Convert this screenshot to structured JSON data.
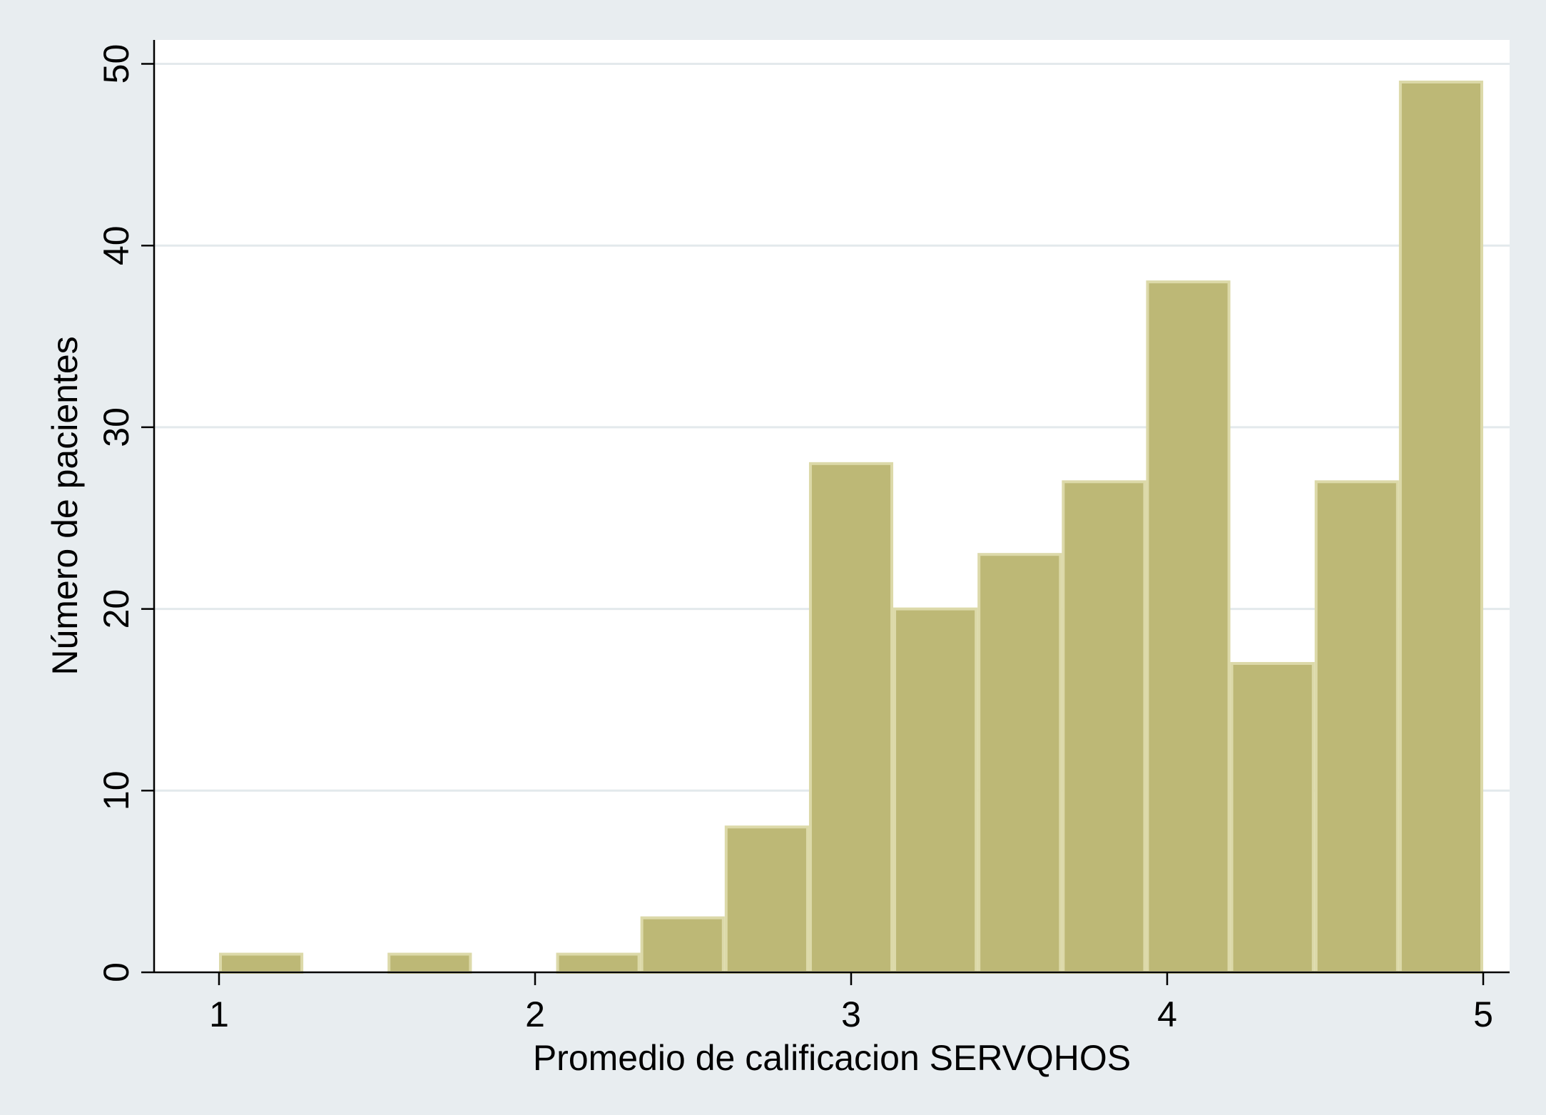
{
  "chart_data": {
    "type": "bar",
    "histogram": true,
    "xlabel": "Promedio de calificacion SERVQHOS",
    "ylabel": "Número de pacientes",
    "xlim": [
      0.8,
      5.08
    ],
    "ylim": [
      0,
      51.5
    ],
    "xticks": [
      1,
      2,
      3,
      4,
      5
    ],
    "yticks": [
      0,
      10,
      20,
      30,
      40,
      50
    ],
    "grid": true,
    "bins": [
      {
        "start": 1.0,
        "end": 1.2667,
        "count": 1
      },
      {
        "start": 1.2667,
        "end": 1.5333,
        "count": 0
      },
      {
        "start": 1.5333,
        "end": 1.8,
        "count": 1
      },
      {
        "start": 1.8,
        "end": 2.0667,
        "count": 0
      },
      {
        "start": 2.0667,
        "end": 2.3333,
        "count": 1
      },
      {
        "start": 2.3333,
        "end": 2.6,
        "count": 3
      },
      {
        "start": 2.6,
        "end": 2.8667,
        "count": 8
      },
      {
        "start": 2.8667,
        "end": 3.1333,
        "count": 28
      },
      {
        "start": 3.1333,
        "end": 3.4,
        "count": 20
      },
      {
        "start": 3.4,
        "end": 3.6667,
        "count": 23
      },
      {
        "start": 3.6667,
        "end": 3.9333,
        "count": 27
      },
      {
        "start": 3.9333,
        "end": 4.2,
        "count": 38
      },
      {
        "start": 4.2,
        "end": 4.4667,
        "count": 17
      },
      {
        "start": 4.4667,
        "end": 4.7333,
        "count": 27
      },
      {
        "start": 4.7333,
        "end": 5.0,
        "count": 49
      }
    ]
  },
  "colors": {
    "page_background": "#e8edf0",
    "plot_background": "#ffffff",
    "bar_fill": "#bdb876",
    "bar_edge": "#dcd9a9",
    "grid": "#e3e9ec",
    "axis": "#000000"
  }
}
